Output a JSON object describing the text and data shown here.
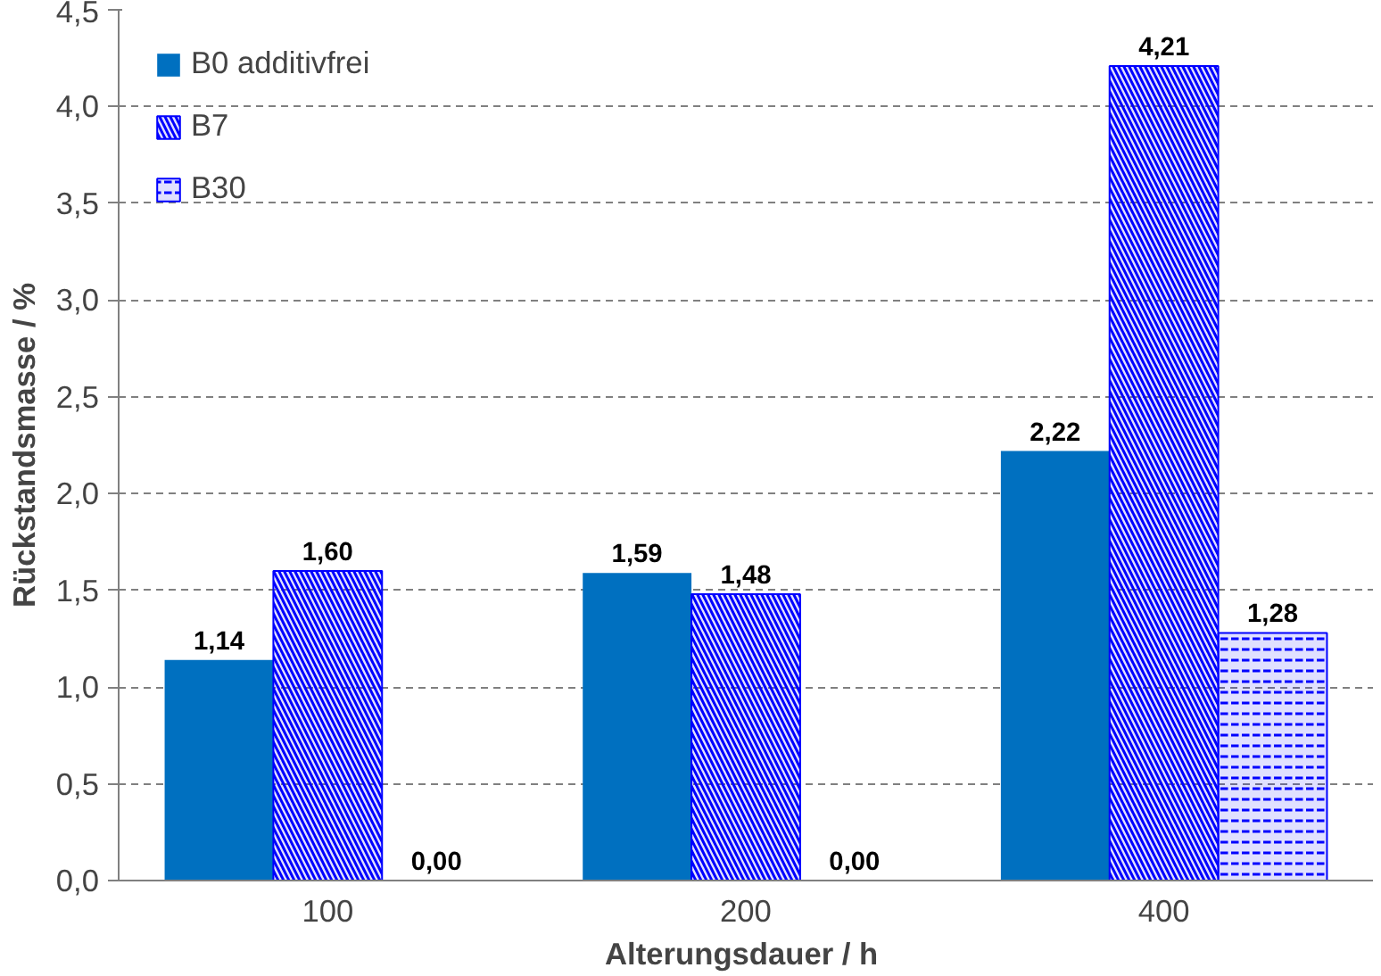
{
  "chart_data": {
    "type": "bar",
    "xlabel": "Alterungsdauer /  h",
    "ylabel": "Rückstandsmasse / %",
    "categories": [
      "100",
      "200",
      "400"
    ],
    "series": [
      {
        "name": "B0 additivfrei",
        "color": "#0070c0",
        "values": [
          1.14,
          1.59,
          2.22
        ],
        "value_labels": [
          "1,14",
          "1,59",
          "2,22"
        ]
      },
      {
        "name": "B7",
        "color": "#0000ff",
        "values": [
          1.6,
          1.48,
          4.21
        ],
        "value_labels": [
          "1,60",
          "1,48",
          "4,21"
        ]
      },
      {
        "name": "B30",
        "color": "#0000ff",
        "values": [
          0.0,
          0.0,
          1.28
        ],
        "value_labels": [
          "0,00",
          "0,00",
          "1,28"
        ]
      }
    ],
    "ylim": [
      0,
      4.5
    ],
    "yticks": [
      {
        "value": 0,
        "label": "0,0"
      },
      {
        "value": 0.5,
        "label": "0,5"
      },
      {
        "value": 1,
        "label": "1,0"
      },
      {
        "value": 1.5,
        "label": "1,5"
      },
      {
        "value": 2,
        "label": "2,0"
      },
      {
        "value": 2.5,
        "label": "2,5"
      },
      {
        "value": 3,
        "label": "3,0"
      },
      {
        "value": 3.5,
        "label": "3,5"
      },
      {
        "value": 4,
        "label": "4,0"
      },
      {
        "value": 4.5,
        "label": "4,5"
      }
    ],
    "grid": "y",
    "legend": "top left"
  }
}
